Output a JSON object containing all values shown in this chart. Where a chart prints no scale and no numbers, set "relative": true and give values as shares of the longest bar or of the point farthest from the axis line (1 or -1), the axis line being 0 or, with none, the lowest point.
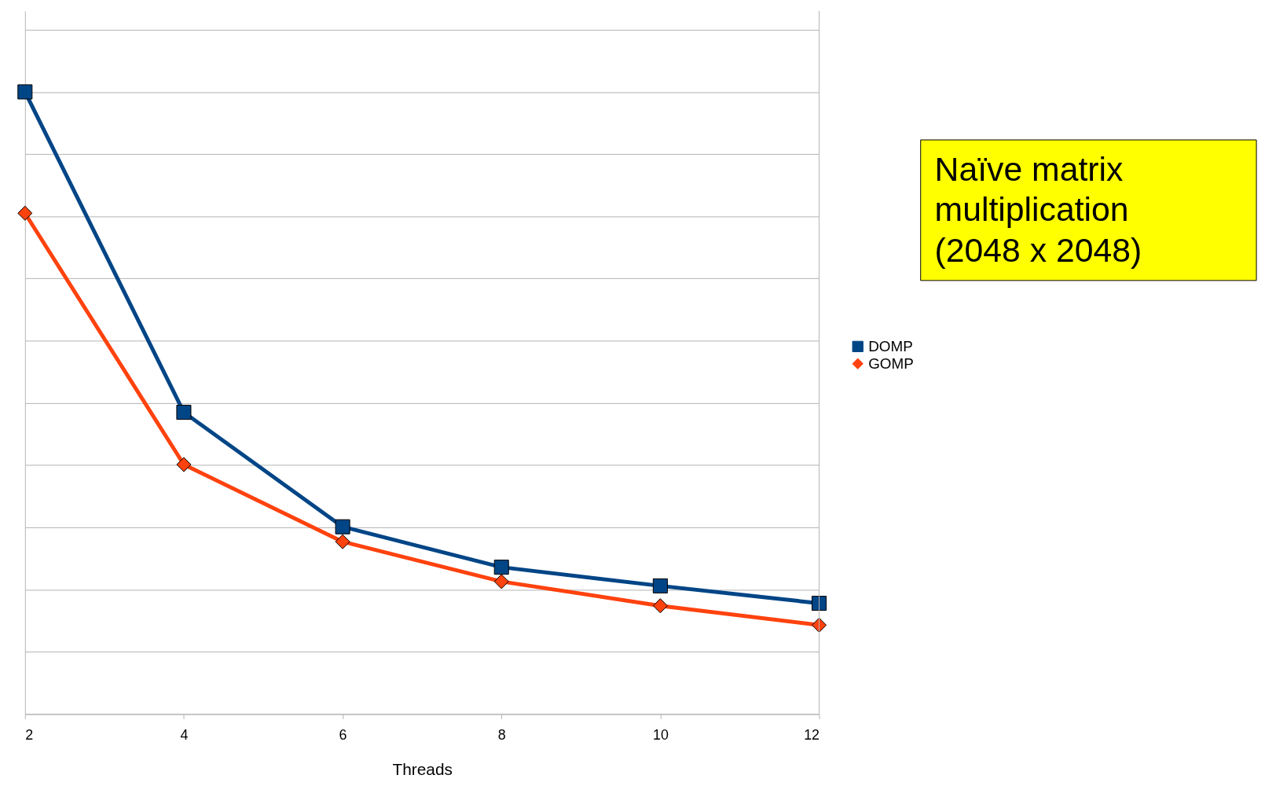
{
  "chart_data": {
    "type": "line",
    "xlabel": "Threads",
    "x": [
      2,
      4,
      6,
      8,
      10,
      12
    ],
    "xlim": [
      2,
      12
    ],
    "xticks": [
      2,
      4,
      6,
      8,
      10,
      12
    ],
    "relative": true,
    "grid": "y",
    "legend": "right",
    "tick_labels": "x",
    "annotations": [
      "Naïve matrix multiplication (2048 x 2048)"
    ],
    "series": [
      {
        "name": "DOMP",
        "color": "#004586",
        "marker": "square",
        "values": [
          1,
          0.485,
          0.301,
          0.236,
          0.206,
          0.178
        ]
      },
      {
        "name": "GOMP",
        "color": "#ff420e",
        "marker": "diamond",
        "values": [
          0.805,
          0.401,
          0.277,
          0.213,
          0.174,
          0.143
        ]
      }
    ]
  }
}
